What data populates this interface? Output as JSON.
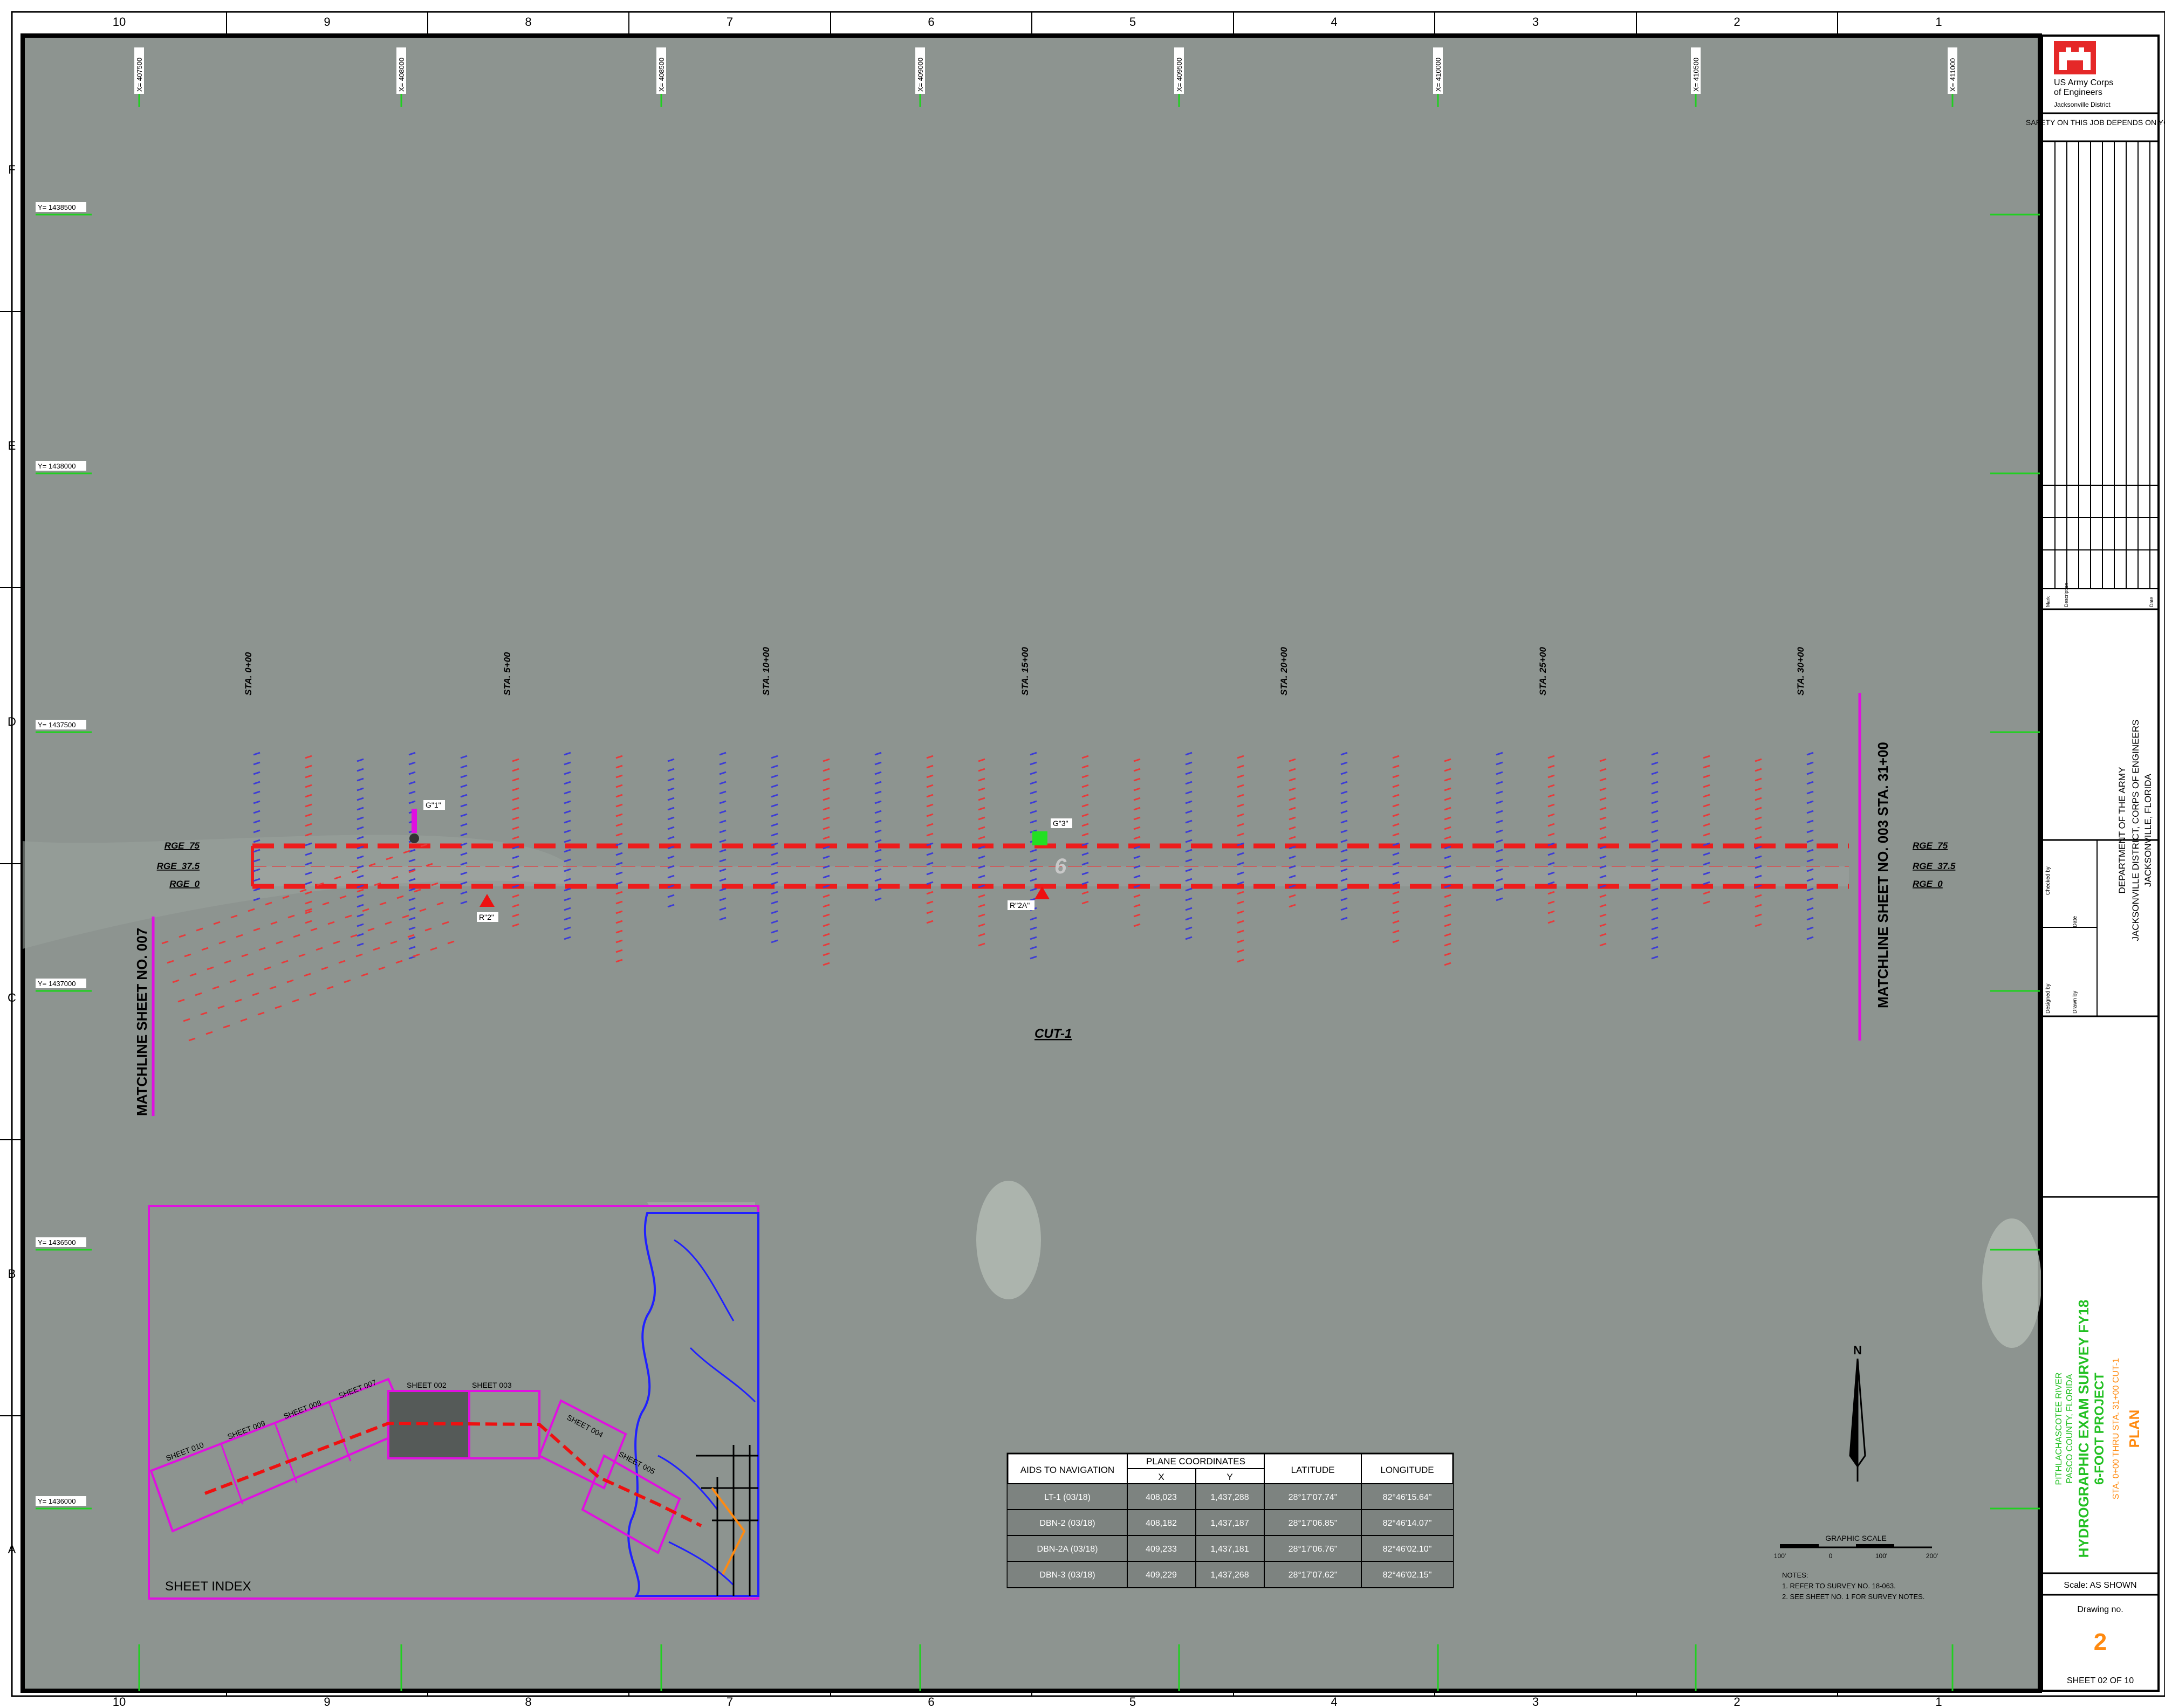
{
  "border": {
    "columns": [
      "10",
      "9",
      "8",
      "7",
      "6",
      "5",
      "4",
      "3",
      "2",
      "1"
    ],
    "rows": [
      "F",
      "E",
      "D",
      "C",
      "B",
      "A"
    ]
  },
  "grid": {
    "x_labels": [
      "X= 407500",
      "X= 408000",
      "X= 408500",
      "X= 409000",
      "X= 409500",
      "X= 410000",
      "X= 410500",
      "X= 411000"
    ],
    "y_labels": [
      "Y= 1438500",
      "Y= 1438000",
      "Y= 1437500",
      "Y= 1437000",
      "Y= 1436500",
      "Y= 1436000"
    ]
  },
  "plan": {
    "stations": [
      "STA. 0+00",
      "STA. 5+00",
      "STA. 10+00",
      "STA. 15+00",
      "STA. 20+00",
      "STA. 25+00",
      "STA. 30+00"
    ],
    "range_left": [
      "RGE_75",
      "RGE_37.5",
      "RGE_0"
    ],
    "range_right": [
      "RGE_75",
      "RGE_37.5",
      "RGE_0"
    ],
    "matchline_left": "MATCHLINE SHEET NO. 007",
    "matchline_right": "MATCHLINE SHEET NO. 003 STA. 31+00",
    "cut_label": "CUT-1",
    "channel_depth_label": "6",
    "aids": [
      {
        "label": "G\"1\"",
        "kind": "marker-magenta"
      },
      {
        "label": "R\"2\"",
        "kind": "triangle-red"
      },
      {
        "label": "G\"3\"",
        "kind": "square-green"
      },
      {
        "label": "R\"2A\"",
        "kind": "triangle-red"
      }
    ],
    "colors": {
      "channel": "#ee1c1c",
      "soundings_red": "#e83a3a",
      "soundings_blue": "#3c3cd6",
      "matchline": "#e010e0",
      "grid": "#20d020",
      "water": "#8d9490"
    }
  },
  "sheet_index": {
    "title": "SHEET INDEX",
    "labels": [
      "SHEET 010",
      "SHEET 009",
      "SHEET 008",
      "SHEET 007",
      "SHEET 002",
      "SHEET 003",
      "SHEET 004",
      "SHEET 005"
    ]
  },
  "aids_table": {
    "headers": {
      "aid": "AIDS TO NAVIGATION",
      "plane": "PLANE COORDINATES",
      "x": "X",
      "y": "Y",
      "lat": "LATITUDE",
      "lon": "LONGITUDE"
    },
    "rows": [
      [
        "LT-1 (03/18)",
        "408,023",
        "1,437,288",
        "28°17'07.74\"",
        "82°46'15.64\""
      ],
      [
        "DBN-2 (03/18)",
        "408,182",
        "1,437,187",
        "28°17'06.85\"",
        "82°46'14.07\""
      ],
      [
        "DBN-2A (03/18)",
        "409,233",
        "1,437,181",
        "28°17'06.76\"",
        "82°46'02.10\""
      ],
      [
        "DBN-3 (03/18)",
        "409,229",
        "1,437,268",
        "28°17'07.62\"",
        "82°46'02.15\""
      ]
    ]
  },
  "scale": {
    "north": "N",
    "title": "GRAPHIC SCALE",
    "ticks": [
      "100'",
      "0",
      "100'",
      "200'"
    ]
  },
  "notes": {
    "title": "NOTES:",
    "items": [
      "1. REFER TO SURVEY NO. 18-063.",
      "2. SEE SHEET NO. 1 FOR SURVEY NOTES."
    ]
  },
  "title_block": {
    "agency_line1": "US Army Corps",
    "agency_line2": "of Engineers",
    "agency_line3": "Jacksonville District",
    "safety": "SAFETY ON THIS JOB DEPENDS ON YOU",
    "rev_headers": [
      "Mark",
      "Description",
      "Date"
    ],
    "dept_line1": "DEPARTMENT OF THE ARMY",
    "dept_line2": "JACKSONVILLE DISTRICT, CORPS OF ENGINEERS",
    "dept_line3": "JACKSONVILLE, FLORIDA",
    "designed_by": "Designed by",
    "drawn_by": "Drawn by",
    "checked_by": "Checked by",
    "date_label": "Date",
    "river": "PITHLACHASCOTEE RIVER",
    "county": "PASCO COUNTY, FLORIDA",
    "title1": "HYDROGRAPHIC EXAM SURVEY FY18",
    "title2": "6-FOOT PROJECT",
    "subtitle": "STA. 0+00 THRU STA. 31+00 CUT-1",
    "plan": "PLAN",
    "scale": "Scale:  AS SHOWN",
    "drawing_no_label": "Drawing no.",
    "drawing_no": "2",
    "sheet": "SHEET  02  OF  10"
  }
}
